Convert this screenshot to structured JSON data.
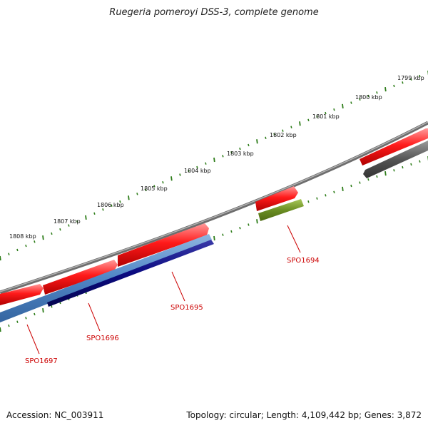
{
  "title": "Ruegeria pomeroyi DSS-3, complete genome",
  "footer": {
    "accession": "Accession: NC_003911",
    "summary": "Topology: circular; Length: 4,109,442 bp; Genes: 3,872"
  },
  "ruler_labels": [
    "1799 kbp",
    "1800 kbp",
    "1801 kbp",
    "1802 kbp",
    "1803 kbp",
    "1804 kbp",
    "1805 kbp",
    "1806 kbp",
    "1807 kbp",
    "1808 kbp"
  ],
  "gene_labels": [
    "SPO1694",
    "SPO1695",
    "SPO1696",
    "SPO1697"
  ],
  "colors": {
    "forward_cds": "#ff1a1a",
    "backbone": "#888888",
    "gray_feature": "#5a5a5a",
    "olive_feature": "#6b8e23",
    "light_blue_feature": "#4f86c6",
    "dark_blue_feature": "#0a0a80",
    "tick": "#2e7d1a",
    "gene_label": "#cc0000"
  }
}
